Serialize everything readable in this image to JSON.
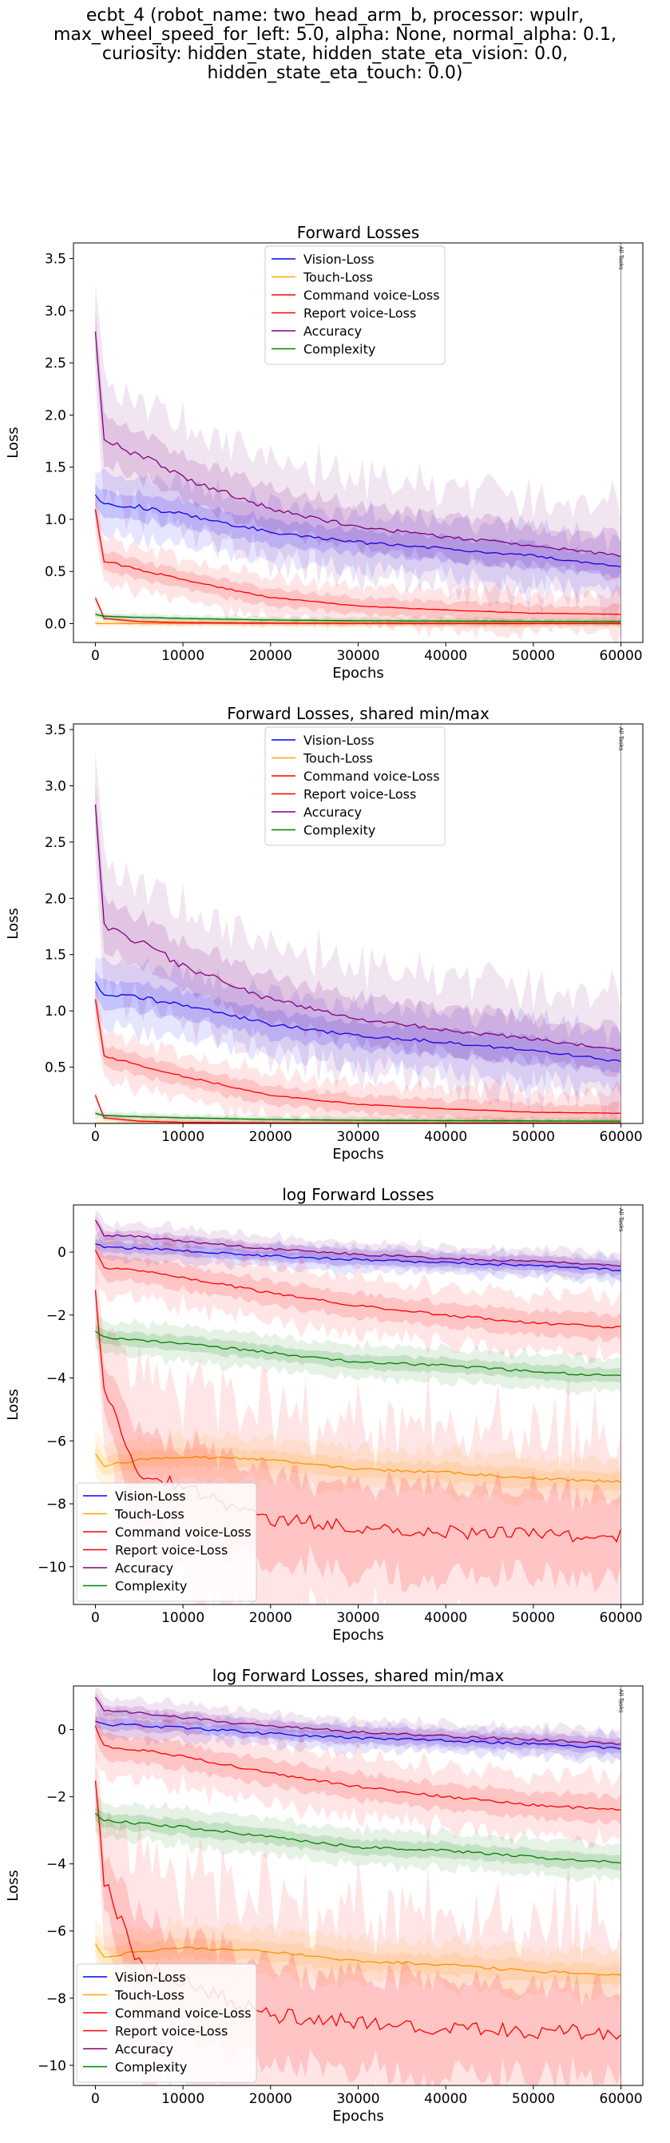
{
  "suptitle_lines": [
    "ecbt_4 (robot_name: two_head_arm_b, processor: wpulr,",
    "max_wheel_speed_for_left: 5.0, alpha: None, normal_alpha: 0.1,",
    "curiosity: hidden_state, hidden_state_eta_vision: 0.0,",
    "hidden_state_eta_touch: 0.0)"
  ],
  "colors": {
    "Vision-Loss": "#0000ff",
    "Touch-Loss": "#ffa500",
    "Command voice-Loss": "#ff0000",
    "Report voice-Loss": "#ff0000",
    "Accuracy": "#800080",
    "Complexity": "#008000"
  },
  "chart_data": [
    {
      "type": "line",
      "title": "Forward Losses",
      "xlabel": "Epochs",
      "ylabel": "Loss",
      "xlim": [
        -2500,
        62500
      ],
      "ylim": [
        -0.18,
        3.65
      ],
      "xticks": [
        0,
        10000,
        20000,
        30000,
        40000,
        50000,
        60000
      ],
      "yticks": [
        0.0,
        0.5,
        1.0,
        1.5,
        2.0,
        2.5,
        3.0,
        3.5
      ],
      "ytick_labels": [
        "0.0",
        "0.5",
        "1.0",
        "1.5",
        "2.0",
        "2.5",
        "3.0",
        "3.5"
      ],
      "vline_x": 60000,
      "vline_label": "All Tasks",
      "legend_loc": "upper center",
      "grid": false,
      "series": [
        {
          "name": "Vision-Loss",
          "x": [
            0,
            1000,
            5000,
            10000,
            20000,
            30000,
            40000,
            50000,
            60000
          ],
          "y": [
            1.25,
            1.15,
            1.12,
            1.05,
            0.88,
            0.78,
            0.72,
            0.65,
            0.55
          ]
        },
        {
          "name": "Touch-Loss",
          "x": [
            0,
            1000,
            5000,
            10000,
            20000,
            30000,
            40000,
            50000,
            60000
          ],
          "y": [
            0.002,
            0.001,
            0.001,
            0.001,
            0.001,
            0.001,
            0.001,
            0.001,
            0.001
          ]
        },
        {
          "name": "Command voice-Loss",
          "x": [
            0,
            1000,
            5000,
            10000,
            20000,
            30000,
            40000,
            50000,
            60000
          ],
          "y": [
            0.25,
            0.05,
            0.02,
            0.01,
            0.005,
            0.003,
            0.002,
            0.002,
            0.002
          ]
        },
        {
          "name": "Report voice-Loss",
          "x": [
            0,
            1000,
            5000,
            10000,
            20000,
            30000,
            40000,
            50000,
            60000
          ],
          "y": [
            1.1,
            0.6,
            0.52,
            0.42,
            0.25,
            0.17,
            0.13,
            0.1,
            0.09
          ]
        },
        {
          "name": "Accuracy",
          "x": [
            0,
            1000,
            5000,
            10000,
            20000,
            30000,
            40000,
            50000,
            60000
          ],
          "y": [
            2.8,
            1.75,
            1.62,
            1.4,
            1.1,
            0.93,
            0.83,
            0.75,
            0.65
          ]
        },
        {
          "name": "Complexity",
          "x": [
            0,
            1000,
            5000,
            10000,
            20000,
            30000,
            40000,
            50000,
            60000
          ],
          "y": [
            0.09,
            0.07,
            0.06,
            0.05,
            0.035,
            0.028,
            0.025,
            0.022,
            0.02
          ]
        }
      ]
    },
    {
      "type": "line",
      "title": "Forward Losses, shared min/max",
      "xlabel": "Epochs",
      "ylabel": "Loss",
      "xlim": [
        -2500,
        62500
      ],
      "ylim": [
        0.0,
        3.55
      ],
      "xticks": [
        0,
        10000,
        20000,
        30000,
        40000,
        50000,
        60000
      ],
      "yticks": [
        0.5,
        1.0,
        1.5,
        2.0,
        2.5,
        3.0,
        3.5
      ],
      "ytick_labels": [
        "0.5",
        "1.0",
        "1.5",
        "2.0",
        "2.5",
        "3.0",
        "3.5"
      ],
      "vline_x": 60000,
      "vline_label": "All Tasks",
      "legend_loc": "upper center",
      "grid": false,
      "series": [
        {
          "name": "Vision-Loss",
          "x": [
            0,
            1000,
            5000,
            10000,
            20000,
            30000,
            40000,
            50000,
            60000
          ],
          "y": [
            1.25,
            1.15,
            1.12,
            1.05,
            0.88,
            0.78,
            0.72,
            0.65,
            0.55
          ]
        },
        {
          "name": "Touch-Loss",
          "x": [
            0,
            1000,
            5000,
            10000,
            20000,
            30000,
            40000,
            50000,
            60000
          ],
          "y": [
            0.002,
            0.001,
            0.001,
            0.001,
            0.001,
            0.001,
            0.001,
            0.001,
            0.001
          ]
        },
        {
          "name": "Command voice-Loss",
          "x": [
            0,
            1000,
            5000,
            10000,
            20000,
            30000,
            40000,
            50000,
            60000
          ],
          "y": [
            0.25,
            0.05,
            0.02,
            0.01,
            0.005,
            0.003,
            0.002,
            0.002,
            0.002
          ]
        },
        {
          "name": "Report voice-Loss",
          "x": [
            0,
            1000,
            5000,
            10000,
            20000,
            30000,
            40000,
            50000,
            60000
          ],
          "y": [
            1.1,
            0.6,
            0.52,
            0.42,
            0.25,
            0.17,
            0.13,
            0.1,
            0.09
          ]
        },
        {
          "name": "Accuracy",
          "x": [
            0,
            1000,
            5000,
            10000,
            20000,
            30000,
            40000,
            50000,
            60000
          ],
          "y": [
            2.8,
            1.75,
            1.62,
            1.4,
            1.1,
            0.93,
            0.83,
            0.75,
            0.65
          ]
        },
        {
          "name": "Complexity",
          "x": [
            0,
            1000,
            5000,
            10000,
            20000,
            30000,
            40000,
            50000,
            60000
          ],
          "y": [
            0.09,
            0.07,
            0.06,
            0.05,
            0.035,
            0.028,
            0.025,
            0.022,
            0.02
          ]
        }
      ]
    },
    {
      "type": "line",
      "title": "log Forward Losses",
      "xlabel": "Epochs",
      "ylabel": "Loss",
      "xlim": [
        -2500,
        62500
      ],
      "ylim": [
        -11.2,
        1.5
      ],
      "xticks": [
        0,
        10000,
        20000,
        30000,
        40000,
        50000,
        60000
      ],
      "yticks": [
        0,
        -2,
        -4,
        -6,
        -8,
        -10
      ],
      "ytick_labels": [
        "0",
        "−2",
        "−4",
        "−6",
        "−8",
        "−10"
      ],
      "vline_x": 60000,
      "vline_label": "All Tasks",
      "legend_loc": "lower left",
      "grid": false,
      "series": [
        {
          "name": "Vision-Loss",
          "x": [
            0,
            1000,
            5000,
            10000,
            20000,
            30000,
            40000,
            50000,
            60000
          ],
          "y": [
            0.25,
            0.15,
            0.12,
            0.05,
            -0.12,
            -0.25,
            -0.33,
            -0.43,
            -0.58
          ]
        },
        {
          "name": "Touch-Loss",
          "x": [
            0,
            1000,
            5000,
            10000,
            20000,
            30000,
            40000,
            50000,
            60000
          ],
          "y": [
            -6.4,
            -6.8,
            -6.6,
            -6.5,
            -6.6,
            -6.9,
            -7.0,
            -7.2,
            -7.3
          ]
        },
        {
          "name": "Command voice-Loss",
          "x": [
            0,
            1000,
            5000,
            10000,
            20000,
            30000,
            40000,
            50000,
            60000
          ],
          "y": [
            -1.4,
            -4.5,
            -7.0,
            -7.5,
            -8.5,
            -8.7,
            -8.9,
            -9.0,
            -9.0
          ]
        },
        {
          "name": "Report voice-Loss",
          "x": [
            0,
            1000,
            5000,
            10000,
            20000,
            30000,
            40000,
            50000,
            60000
          ],
          "y": [
            0.1,
            -0.5,
            -0.6,
            -0.8,
            -1.3,
            -1.7,
            -2.0,
            -2.25,
            -2.4
          ]
        },
        {
          "name": "Accuracy",
          "x": [
            0,
            1000,
            5000,
            10000,
            20000,
            30000,
            40000,
            50000,
            60000
          ],
          "y": [
            1.0,
            0.55,
            0.5,
            0.35,
            0.1,
            -0.07,
            -0.2,
            -0.3,
            -0.43
          ]
        },
        {
          "name": "Complexity",
          "x": [
            0,
            1000,
            5000,
            10000,
            20000,
            30000,
            40000,
            50000,
            60000
          ],
          "y": [
            -2.5,
            -2.7,
            -2.8,
            -2.9,
            -3.2,
            -3.5,
            -3.6,
            -3.8,
            -3.95
          ]
        }
      ]
    },
    {
      "type": "line",
      "title": "log Forward Losses, shared min/max",
      "xlabel": "Epochs",
      "ylabel": "Loss",
      "xlim": [
        -2500,
        62500
      ],
      "ylim": [
        -10.6,
        1.3
      ],
      "xticks": [
        0,
        10000,
        20000,
        30000,
        40000,
        50000,
        60000
      ],
      "yticks": [
        0,
        -2,
        -4,
        -6,
        -8,
        -10
      ],
      "ytick_labels": [
        "0",
        "−2",
        "−4",
        "−6",
        "−8",
        "−10"
      ],
      "vline_x": 60000,
      "vline_label": "All Tasks",
      "legend_loc": "lower left",
      "grid": false,
      "series": [
        {
          "name": "Vision-Loss",
          "x": [
            0,
            1000,
            5000,
            10000,
            20000,
            30000,
            40000,
            50000,
            60000
          ],
          "y": [
            0.25,
            0.15,
            0.12,
            0.05,
            -0.12,
            -0.25,
            -0.33,
            -0.43,
            -0.58
          ]
        },
        {
          "name": "Touch-Loss",
          "x": [
            0,
            1000,
            5000,
            10000,
            20000,
            30000,
            40000,
            50000,
            60000
          ],
          "y": [
            -6.4,
            -6.8,
            -6.6,
            -6.5,
            -6.6,
            -6.9,
            -7.0,
            -7.2,
            -7.3
          ]
        },
        {
          "name": "Command voice-Loss",
          "x": [
            0,
            1000,
            5000,
            10000,
            20000,
            30000,
            40000,
            50000,
            60000
          ],
          "y": [
            -1.4,
            -4.5,
            -7.0,
            -7.5,
            -8.5,
            -8.7,
            -8.9,
            -9.0,
            -9.0
          ]
        },
        {
          "name": "Report voice-Loss",
          "x": [
            0,
            1000,
            5000,
            10000,
            20000,
            30000,
            40000,
            50000,
            60000
          ],
          "y": [
            0.1,
            -0.5,
            -0.6,
            -0.8,
            -1.3,
            -1.7,
            -2.0,
            -2.25,
            -2.4
          ]
        },
        {
          "name": "Accuracy",
          "x": [
            0,
            1000,
            5000,
            10000,
            20000,
            30000,
            40000,
            50000,
            60000
          ],
          "y": [
            1.0,
            0.55,
            0.5,
            0.35,
            0.1,
            -0.07,
            -0.2,
            -0.3,
            -0.43
          ]
        },
        {
          "name": "Complexity",
          "x": [
            0,
            1000,
            5000,
            10000,
            20000,
            30000,
            40000,
            50000,
            60000
          ],
          "y": [
            -2.5,
            -2.7,
            -2.8,
            -2.9,
            -3.2,
            -3.5,
            -3.6,
            -3.8,
            -3.95
          ]
        }
      ]
    }
  ]
}
